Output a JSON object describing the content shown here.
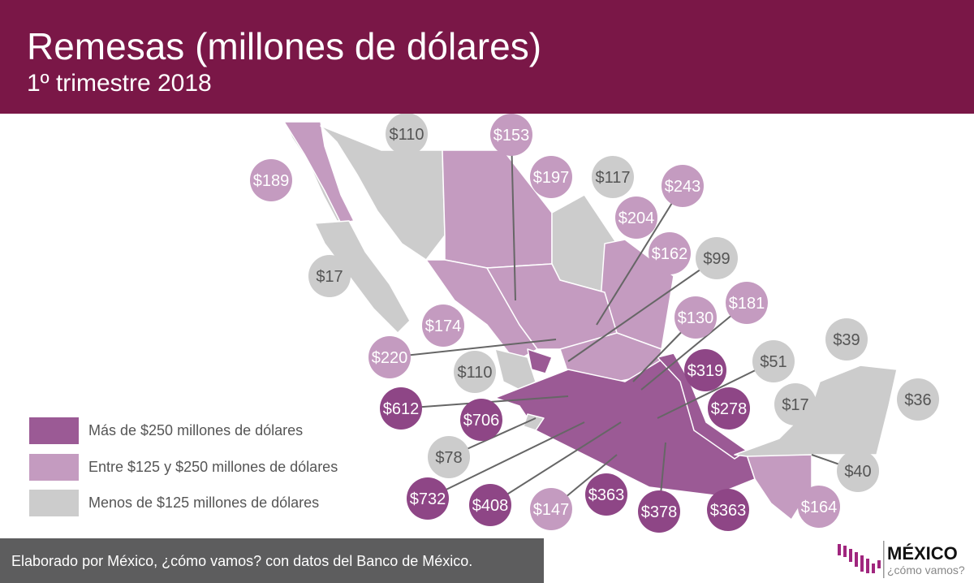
{
  "header": {
    "title": "Remesas (millones de dólares)",
    "subtitle": "1º trimestre 2018"
  },
  "colors": {
    "header": "#7a1747",
    "high": "#9b5a95",
    "mid": "#c49bc0",
    "low": "#cccccc",
    "footer": "#5d5d5e"
  },
  "legend": [
    {
      "label": "Más de $250 millones de dólares",
      "category": "high"
    },
    {
      "label": "Entre $125 y $250 millones de dólares",
      "category": "mid"
    },
    {
      "label": "Menos de $125 millones de dólares",
      "category": "low"
    }
  ],
  "values": [
    {
      "label": "$110",
      "category": "low"
    },
    {
      "label": "$153",
      "category": "mid"
    },
    {
      "label": "$189",
      "category": "mid"
    },
    {
      "label": "$197",
      "category": "mid"
    },
    {
      "label": "$117",
      "category": "low"
    },
    {
      "label": "$243",
      "category": "mid"
    },
    {
      "label": "$204",
      "category": "mid"
    },
    {
      "label": "$162",
      "category": "mid"
    },
    {
      "label": "$99",
      "category": "low"
    },
    {
      "label": "$17",
      "category": "low"
    },
    {
      "label": "$130",
      "category": "mid"
    },
    {
      "label": "$181",
      "category": "mid"
    },
    {
      "label": "$174",
      "category": "mid"
    },
    {
      "label": "$220",
      "category": "mid"
    },
    {
      "label": "$110",
      "category": "low"
    },
    {
      "label": "$319",
      "category": "high"
    },
    {
      "label": "$51",
      "category": "low"
    },
    {
      "label": "$39",
      "category": "low"
    },
    {
      "label": "$612",
      "category": "high"
    },
    {
      "label": "$706",
      "category": "high"
    },
    {
      "label": "$278",
      "category": "high"
    },
    {
      "label": "$17",
      "category": "low"
    },
    {
      "label": "$36",
      "category": "low"
    },
    {
      "label": "$78",
      "category": "low"
    },
    {
      "label": "$40",
      "category": "low"
    },
    {
      "label": "$732",
      "category": "high"
    },
    {
      "label": "$408",
      "category": "high"
    },
    {
      "label": "$147",
      "category": "mid"
    },
    {
      "label": "$363",
      "category": "high"
    },
    {
      "label": "$378",
      "category": "high"
    },
    {
      "label": "$363",
      "category": "high"
    },
    {
      "label": "$164",
      "category": "mid"
    }
  ],
  "footer": {
    "text": "Elaborado por México, ¿cómo vamos? con datos del Banco de México."
  },
  "logo": {
    "name": "MÉXICO",
    "tagline": "¿cómo vamos?"
  }
}
